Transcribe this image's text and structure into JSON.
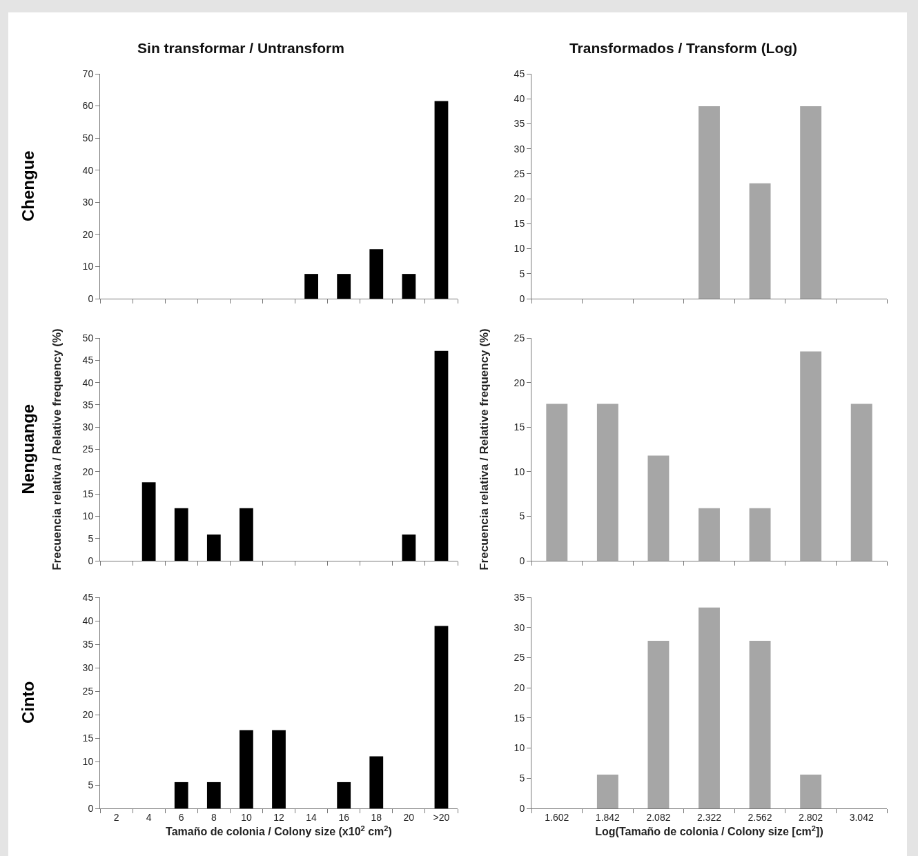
{
  "chart_data": [
    {
      "type": "bar",
      "title": "Sin transformar / Untransform",
      "annotations": [
        "Chengue"
      ],
      "categories": [
        null,
        null,
        null,
        null,
        null,
        null,
        null,
        null,
        null,
        null,
        null
      ],
      "values": [
        0,
        0,
        0,
        0,
        0,
        0,
        7.7,
        7.7,
        15.4,
        7.7,
        61.5
      ],
      "color": "#000000",
      "ylim": [
        0,
        70
      ],
      "yticks": [
        0,
        10,
        20,
        30,
        40,
        50,
        60,
        70
      ],
      "tick_labels": "y"
    },
    {
      "type": "bar",
      "title": "Transformados / Transform (Log)",
      "categories": [
        null,
        null,
        null,
        null,
        null,
        null,
        null
      ],
      "values": [
        0,
        0,
        0,
        38.5,
        23.1,
        38.5,
        0
      ],
      "color": "#a6a6a6",
      "ylim": [
        0,
        45
      ],
      "yticks": [
        0,
        5,
        10,
        15,
        20,
        25,
        30,
        35,
        40,
        45
      ],
      "tick_labels": "y"
    },
    {
      "type": "bar",
      "ylabel": "Frecuencia relativa / Relative frequency (%)",
      "annotations": [
        "Nenguange"
      ],
      "categories": [
        null,
        null,
        null,
        null,
        null,
        null,
        null,
        null,
        null,
        null,
        null
      ],
      "values": [
        0,
        17.6,
        11.8,
        5.9,
        11.8,
        0,
        0,
        0,
        0,
        5.9,
        47.1
      ],
      "color": "#000000",
      "ylim": [
        0,
        50
      ],
      "yticks": [
        0,
        5,
        10,
        15,
        20,
        25,
        30,
        35,
        40,
        45,
        50
      ],
      "tick_labels": "y"
    },
    {
      "type": "bar",
      "ylabel": "Frecuencia relativa / Relative frequency (%)",
      "categories": [
        null,
        null,
        null,
        null,
        null,
        null,
        null
      ],
      "values": [
        17.6,
        17.6,
        11.8,
        5.9,
        5.9,
        23.5,
        17.6
      ],
      "color": "#a6a6a6",
      "ylim": [
        0,
        25
      ],
      "yticks": [
        0,
        5,
        10,
        15,
        20,
        25
      ],
      "tick_labels": "y"
    },
    {
      "type": "bar",
      "xlabel": "Tamaño de colonia / Colony size (x10$^{2}$ cm$^{2}$)",
      "annotations": [
        "Cinto"
      ],
      "categories": [
        "2",
        "4",
        "6",
        "8",
        "10",
        "12",
        "14",
        "16",
        "18",
        "20",
        ">20"
      ],
      "values": [
        0,
        0,
        5.6,
        5.6,
        16.7,
        16.7,
        0,
        5.6,
        11.1,
        0,
        38.9
      ],
      "color": "#000000",
      "ylim": [
        0,
        45
      ],
      "yticks": [
        0,
        5,
        10,
        15,
        20,
        25,
        30,
        35,
        40,
        45
      ]
    },
    {
      "type": "bar",
      "xlabel": "Log(Tamaño de colonia / Colony size [cm$^{2}$])",
      "categories": [
        "1.602",
        "1.842",
        "2.082",
        "2.322",
        "2.562",
        "2.802",
        "3.042"
      ],
      "values": [
        0,
        5.6,
        27.8,
        33.3,
        27.8,
        5.6,
        0
      ],
      "color": "#a6a6a6",
      "ylim": [
        0,
        35
      ],
      "yticks": [
        0,
        5,
        10,
        15,
        20,
        25,
        30,
        35
      ]
    }
  ]
}
